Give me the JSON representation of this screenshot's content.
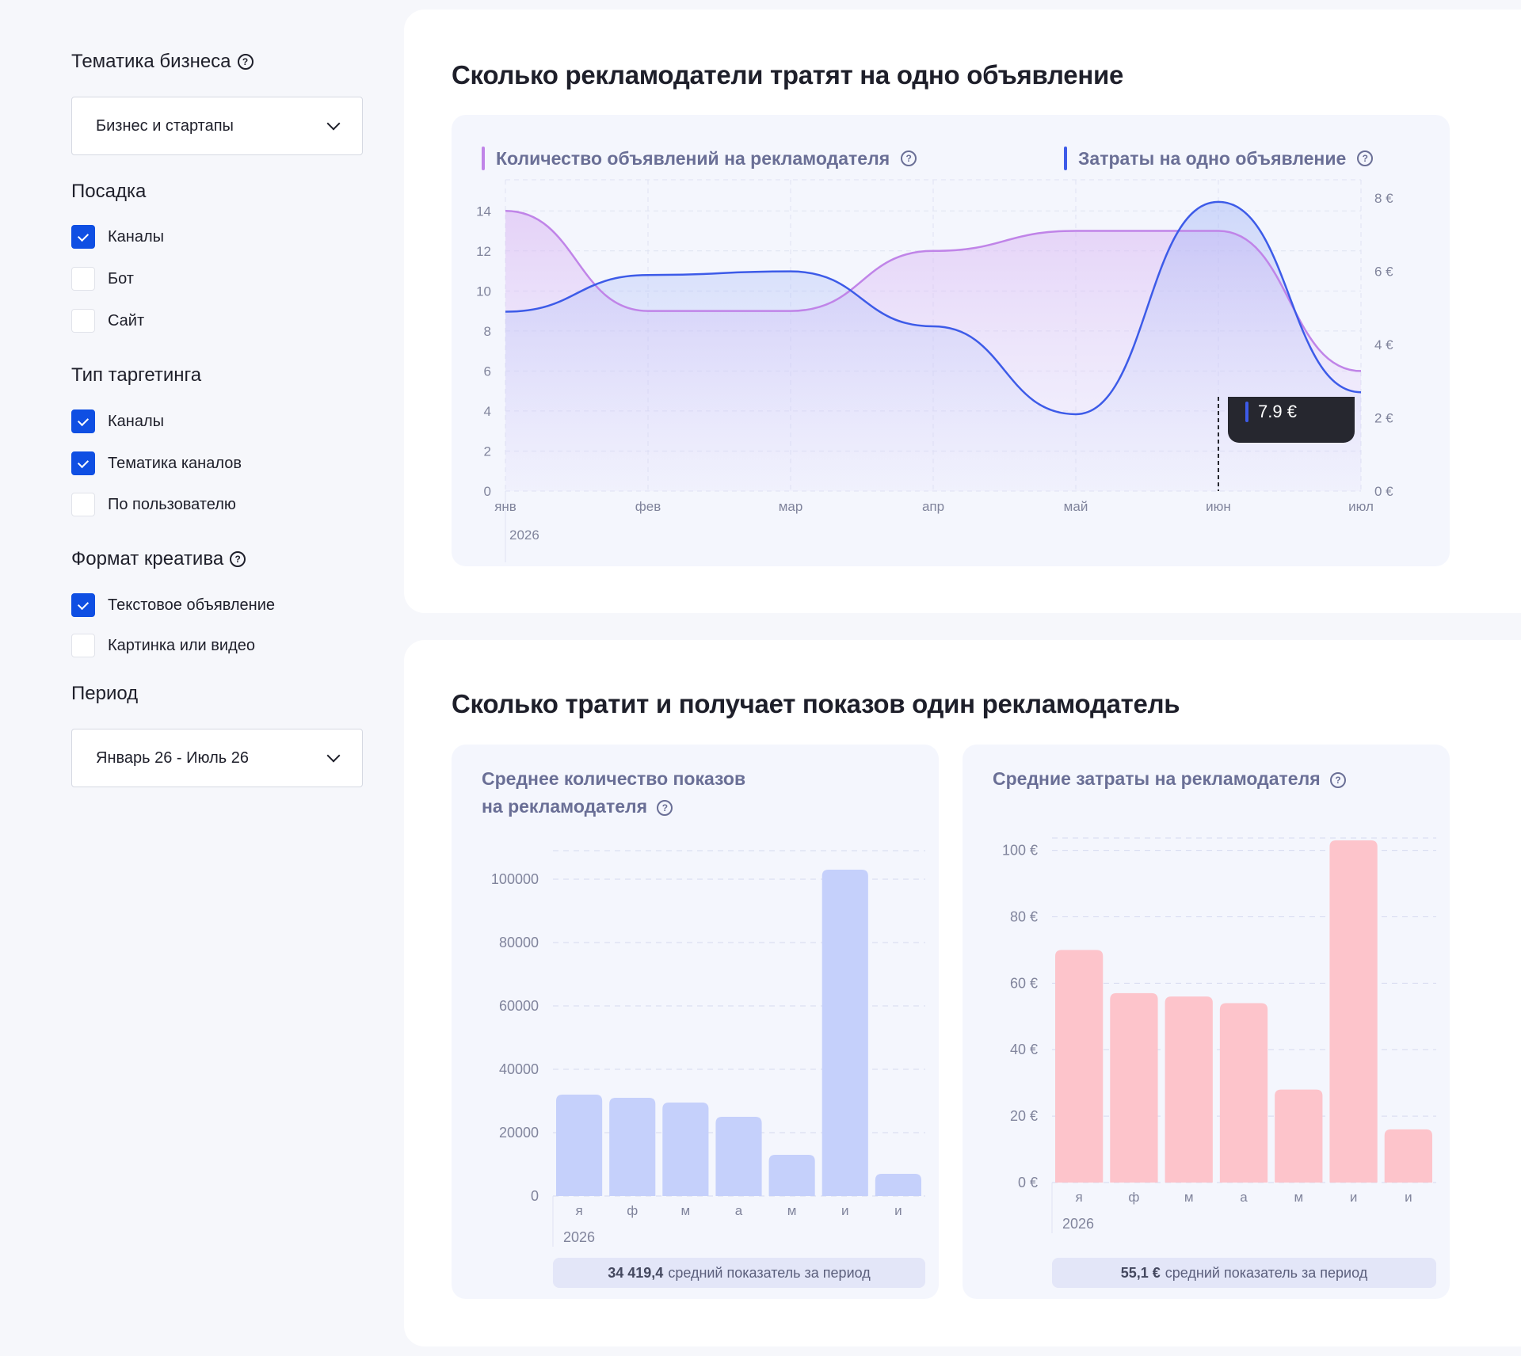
{
  "sidebar": {
    "business": {
      "title": "Тематика бизнеса",
      "value": "Бизнес и стартапы"
    },
    "placement": {
      "title": "Посадка",
      "options": [
        {
          "label": "Каналы",
          "checked": true
        },
        {
          "label": "Бот",
          "checked": false
        },
        {
          "label": "Сайт",
          "checked": false
        }
      ]
    },
    "targeting": {
      "title": "Тип таргетинга",
      "options": [
        {
          "label": "Каналы",
          "checked": true
        },
        {
          "label": "Тематика каналов",
          "checked": true
        },
        {
          "label": "По пользователю",
          "checked": false
        }
      ]
    },
    "format": {
      "title": "Формат креатива",
      "options": [
        {
          "label": "Текстовое объявление",
          "checked": true
        },
        {
          "label": "Картинка или видео",
          "checked": false
        }
      ]
    },
    "period": {
      "title": "Период",
      "value": "Январь 26 - Июль 26"
    }
  },
  "section1": {
    "title": "Сколько рекламодатели тратят на одно объявление",
    "legend_ads": "Количество объявлений на рекламодателя",
    "legend_cost": "Затраты на одно объявление",
    "tooltip": "7.9 €",
    "year": "2026"
  },
  "section2": {
    "title": "Сколько тратит и получает показов один рекламодатель",
    "left": {
      "title_line1": "Среднее количество показов",
      "title_line2": "на рекламодателя",
      "avg_value": "34 419,4",
      "avg_text": "средний показатель за период",
      "year": "2026"
    },
    "right": {
      "title": "Средние затраты на рекламодателя",
      "avg_value": "55,1 €",
      "avg_text": "средний показатель за период",
      "year": "2026"
    }
  },
  "colors": {
    "accent": "#0f4fe3",
    "line_ads": "#c084e8",
    "line_cost": "#3d5be8",
    "bar_impressions": "#c5d0fb",
    "bar_spend": "#fdc4cb"
  },
  "chart_data": [
    {
      "type": "line",
      "categories": [
        "янв",
        "фев",
        "мар",
        "апр",
        "май",
        "июн",
        "июл"
      ],
      "series": [
        {
          "name": "Количество объявлений на рекламодателя",
          "axis": "left",
          "values": [
            14,
            9,
            9,
            12,
            13,
            13,
            6
          ]
        },
        {
          "name": "Затраты на одно объявление",
          "axis": "right",
          "values": [
            4.9,
            5.9,
            6.0,
            4.5,
            2.1,
            7.9,
            2.7
          ]
        }
      ],
      "y_left": {
        "ticks": [
          0,
          2,
          4,
          6,
          8,
          10,
          12,
          14
        ],
        "range": [
          0,
          15
        ]
      },
      "y_right": {
        "ticks": [
          "0 €",
          "2 €",
          "4 €",
          "6 €",
          "8 €"
        ],
        "range": [
          0,
          8.2
        ]
      },
      "grid": true,
      "tooltip_category": "июн"
    },
    {
      "type": "bar",
      "categories": [
        "я",
        "ф",
        "м",
        "а",
        "м",
        "и",
        "и"
      ],
      "values": [
        32000,
        31000,
        29500,
        25000,
        13000,
        103000,
        7000
      ],
      "ylim": [
        0,
        108000
      ],
      "y_ticks": [
        "0",
        "20000",
        "40000",
        "60000",
        "80000",
        "100000"
      ],
      "grid": true
    },
    {
      "type": "bar",
      "categories": [
        "я",
        "ф",
        "м",
        "а",
        "м",
        "и",
        "и"
      ],
      "values": [
        70,
        57,
        56,
        54,
        28,
        103,
        16
      ],
      "ylim": [
        0,
        103
      ],
      "y_ticks": [
        "0 €",
        "20 €",
        "40 €",
        "60 €",
        "80 €",
        "100 €"
      ],
      "grid": true
    }
  ]
}
